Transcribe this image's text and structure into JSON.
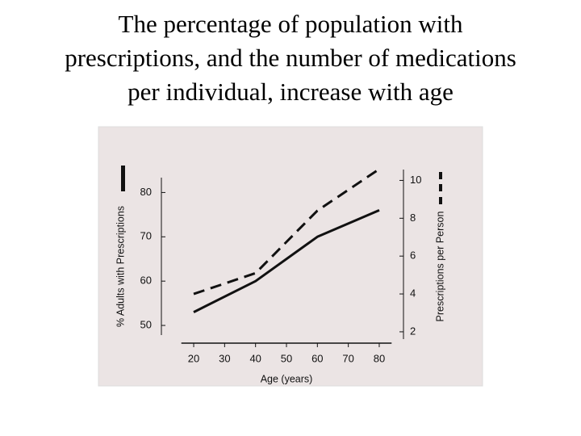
{
  "chart_data": {
    "type": "line",
    "title": "The percentage of population with prescriptions, and the number of medications per individual, increase with age",
    "x_label": "Age (years)",
    "y_label": "% Adults with Prescriptions",
    "y2_label": "Prescriptions per Person",
    "x": [
      20,
      40,
      60,
      80
    ],
    "series": [
      {
        "color": "#111111",
        "dashed": false,
        "values": [
          53,
          60,
          70,
          76
        ]
      },
      {
        "color": "#111111",
        "dashed": true,
        "axis": "y2",
        "values": [
          4.0,
          5.1,
          8.4,
          10.6
        ]
      }
    ],
    "xlim": [
      16,
      84
    ],
    "xticks": [
      20,
      30,
      40,
      50,
      60,
      70,
      80
    ],
    "ylim": [
      46,
      87
    ],
    "yticks": [
      50,
      60,
      70,
      80
    ],
    "y2lim": [
      1.4,
      11
    ],
    "y2ticks": [
      2,
      4,
      6,
      8,
      10
    ]
  }
}
